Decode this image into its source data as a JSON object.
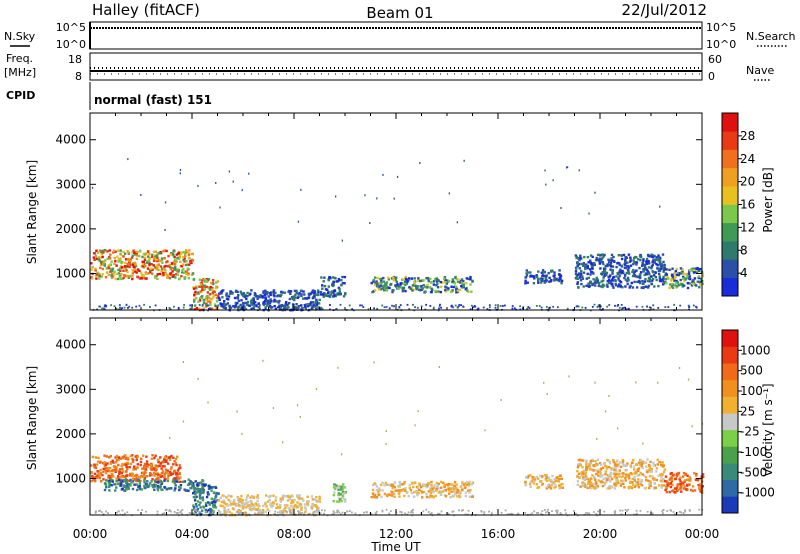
{
  "header": {
    "station": "Halley (fitACF)",
    "beam": "Beam 01",
    "date": "22/Jul/2012"
  },
  "strips": {
    "nsky": {
      "label": "N.Sky",
      "ticks": [
        "10^5",
        "10^0"
      ]
    },
    "nsearch": {
      "label": "N.Search",
      "ticks": [
        "10^5",
        "10^0"
      ]
    },
    "freq": {
      "label_1": "Freq.",
      "label_2": "[MHz]",
      "ticks": [
        "18",
        "8"
      ]
    },
    "nave": {
      "label": "Nave",
      "ticks": [
        "60",
        "0"
      ]
    },
    "cpid": {
      "label": "CPID",
      "value": "normal (fast) 151"
    }
  },
  "colors": {
    "power_scale": [
      "#1a2cd8",
      "#2a4fa8",
      "#2f7a6a",
      "#3f9a55",
      "#7cc84a",
      "#e8c020",
      "#f0a020",
      "#f07020",
      "#e83a14",
      "#e01010"
    ],
    "velocity_scale": [
      "#1a3ab8",
      "#2f6aa6",
      "#3a8a7a",
      "#4aa14a",
      "#7cd048",
      "#c8c8c8",
      "#f0b030",
      "#f0901e",
      "#f06a1a",
      "#e83a14",
      "#e01010"
    ]
  },
  "chart_data": [
    {
      "type": "heatmap",
      "name": "power",
      "xlabel": "",
      "ylabel": "Slant Range [km]",
      "xlim": [
        "00:00",
        "24:00"
      ],
      "ylim": [
        180,
        4600
      ],
      "yticks": [
        "1000",
        "2000",
        "3000",
        "4000"
      ],
      "colorbar": {
        "label": "Power [dB]",
        "range": [
          0,
          32
        ],
        "ticks": [
          "4",
          "8",
          "12",
          "16",
          "20",
          "24",
          "28"
        ]
      },
      "regions": [
        {
          "x": [
            "00:00",
            "04:00"
          ],
          "range_km": [
            900,
            1550
          ],
          "level": "high",
          "values_db": [
            16,
            30
          ]
        },
        {
          "x": [
            "04:00",
            "05:00"
          ],
          "range_km": [
            200,
            900
          ],
          "level": "high",
          "values_db": [
            20,
            30
          ]
        },
        {
          "x": [
            "05:00",
            "09:00"
          ],
          "range_km": [
            200,
            650
          ],
          "level": "low",
          "values_db": [
            4,
            12
          ]
        },
        {
          "x": [
            "09:00",
            "10:00"
          ],
          "range_km": [
            500,
            950
          ],
          "level": "low",
          "values_db": [
            4,
            12
          ]
        },
        {
          "x": [
            "11:00",
            "15:00"
          ],
          "range_km": [
            600,
            950
          ],
          "level": "medium",
          "values_db": [
            4,
            20
          ]
        },
        {
          "x": [
            "17:00",
            "18:30"
          ],
          "range_km": [
            800,
            1100
          ],
          "level": "low",
          "values_db": [
            4,
            10
          ]
        },
        {
          "x": [
            "19:00",
            "22:30"
          ],
          "range_km": [
            700,
            1450
          ],
          "level": "low",
          "values_db": [
            4,
            12
          ]
        },
        {
          "x": [
            "22:30",
            "24:00"
          ],
          "range_km": [
            700,
            1150
          ],
          "level": "medium",
          "values_db": [
            4,
            16
          ]
        }
      ]
    },
    {
      "type": "heatmap",
      "name": "velocity",
      "xlabel": "Time UT",
      "ylabel": "Slant Range [km]",
      "xticks": [
        "00:00",
        "04:00",
        "08:00",
        "12:00",
        "16:00",
        "20:00",
        "00:00"
      ],
      "xlim": [
        "00:00",
        "24:00"
      ],
      "ylim": [
        180,
        4600
      ],
      "yticks": [
        "1000",
        "2000",
        "3000",
        "4000"
      ],
      "colorbar": {
        "label": "Velocity [m s⁻¹]",
        "ticks": [
          "1000",
          "500",
          "100",
          "25",
          "-25",
          "-100",
          "-500",
          "-1000"
        ]
      },
      "regions": [
        {
          "x": [
            "00:00",
            "03:30"
          ],
          "range_km": [
            950,
            1550
          ],
          "values_ms": [
            -500,
            -100
          ]
        },
        {
          "x": [
            "00:30",
            "04:30"
          ],
          "range_km": [
            750,
            1000
          ],
          "values_ms": [
            100,
            1000
          ]
        },
        {
          "x": [
            "04:00",
            "05:00"
          ],
          "range_km": [
            200,
            900
          ],
          "values_ms": [
            100,
            1000
          ]
        },
        {
          "x": [
            "05:00",
            "09:00"
          ],
          "range_km": [
            200,
            650
          ],
          "values_ms": [
            -25,
            25
          ]
        },
        {
          "x": [
            "09:30",
            "10:00"
          ],
          "range_km": [
            500,
            900
          ],
          "values_ms": [
            25,
            100
          ]
        },
        {
          "x": [
            "11:00",
            "15:00"
          ],
          "range_km": [
            600,
            950
          ],
          "values_ms": [
            -100,
            -25
          ]
        },
        {
          "x": [
            "17:00",
            "18:30"
          ],
          "range_km": [
            800,
            1100
          ],
          "values_ms": [
            -100,
            -25
          ]
        },
        {
          "x": [
            "19:00",
            "22:30"
          ],
          "range_km": [
            800,
            1450
          ],
          "values_ms": [
            -100,
            -25
          ]
        },
        {
          "x": [
            "22:30",
            "24:00"
          ],
          "range_km": [
            700,
            1150
          ],
          "values_ms": [
            -500,
            -100
          ]
        }
      ]
    }
  ]
}
